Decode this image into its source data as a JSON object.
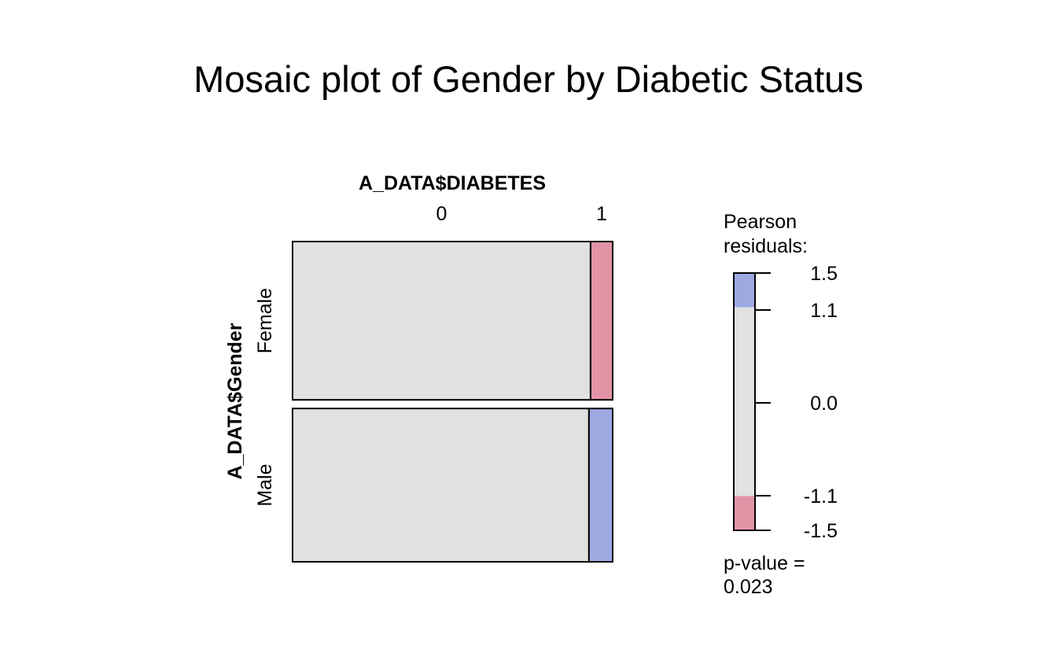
{
  "chart_data": {
    "type": "mosaic",
    "title": "Mosaic plot of Gender by Diabetic Status",
    "column_variable": "A_DATA$DIABETES",
    "row_variable": "A_DATA$Gender",
    "columns": [
      "0",
      "1"
    ],
    "rows": [
      "Female",
      "Male"
    ],
    "row_proportions": [
      0.508,
      0.492
    ],
    "cells": [
      {
        "row": "Female",
        "col": "0",
        "proportion_within_row": 0.931,
        "residual_band": "none"
      },
      {
        "row": "Female",
        "col": "1",
        "proportion_within_row": 0.069,
        "residual_band": "negative"
      },
      {
        "row": "Male",
        "col": "0",
        "proportion_within_row": 0.926,
        "residual_band": "none"
      },
      {
        "row": "Male",
        "col": "1",
        "proportion_within_row": 0.074,
        "residual_band": "positive"
      }
    ],
    "legend": {
      "title_line1": "Pearson",
      "title_line2": "residuals:",
      "ticks": [
        1.5,
        1.1,
        0.0,
        -1.1,
        -1.5
      ],
      "tick_labels": [
        "1.5",
        "1.1",
        "0.0",
        "-1.1",
        "-1.5"
      ],
      "range": [
        -1.5,
        1.5
      ],
      "bands": [
        {
          "from": 1.1,
          "to": 1.5,
          "color": "#9EA9E2"
        },
        {
          "from": -1.1,
          "to": 1.1,
          "color": "#E1E1E1"
        },
        {
          "from": -1.5,
          "to": -1.1,
          "color": "#E294A6"
        }
      ],
      "placement": "right"
    },
    "p_value_label": "p-value =",
    "p_value": "0.023",
    "colors": {
      "neutral": "#E1E1E1",
      "positive": "#9EA9E2",
      "negative": "#E294A6"
    }
  }
}
